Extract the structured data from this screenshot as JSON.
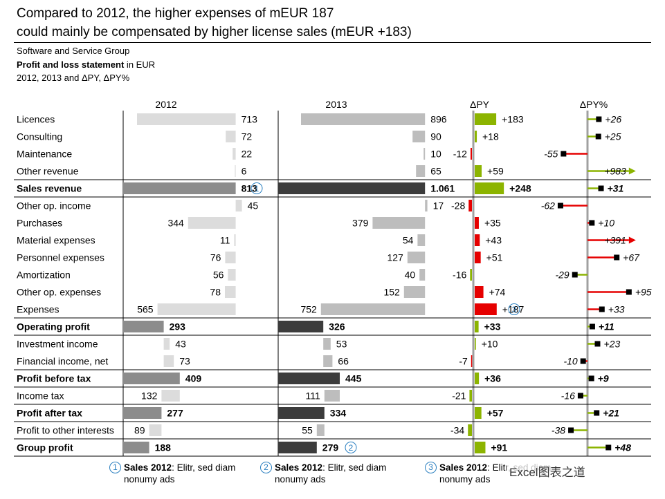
{
  "header": {
    "title_line1": "Compared to 2012, the higher expenses of mEUR 187",
    "title_line2": "could mainly be compensated by higher license sales (mEUR +183)",
    "company": "Software and Service Group",
    "statement_bold": "Profit and loss statement",
    "statement_rest": " in EUR",
    "periods": "2012, 2013 and ΔPY, ΔPY%"
  },
  "chart_data": {
    "type": "bar",
    "column_headers": [
      "2012",
      "2013",
      "ΔPY",
      "ΔPY%"
    ],
    "rows": [
      {
        "label": "Licences",
        "kind": "item",
        "v2012": 713,
        "l2012": "713",
        "v2013": 896,
        "l2013": "896",
        "dpy": 183,
        "ldpy": "+183",
        "dpct": 26,
        "ldpct": "+26",
        "bold": false
      },
      {
        "label": "Consulting",
        "kind": "item",
        "v2012": 72,
        "l2012": "72",
        "v2013": 90,
        "l2013": "90",
        "dpy": 18,
        "ldpy": "+18",
        "dpct": 25,
        "ldpct": "+25",
        "bold": false
      },
      {
        "label": "Maintenance",
        "kind": "item",
        "v2012": 22,
        "l2012": "22",
        "v2013": 10,
        "l2013": "10",
        "dpy": -12,
        "ldpy": "-12",
        "dpct": -55,
        "ldpct": "-55",
        "bold": false
      },
      {
        "label": "Other revenue",
        "kind": "item",
        "v2012": 6,
        "l2012": "6",
        "v2013": 65,
        "l2013": "65",
        "dpy": 59,
        "ldpy": "+59",
        "dpct": 983,
        "ldpct": "+983",
        "bold": false
      },
      {
        "label": "Sales revenue",
        "kind": "total",
        "v2012": 813,
        "l2012": "813",
        "v2013": 1061,
        "l2013": "1.061",
        "dpy": 248,
        "ldpy": "+248",
        "dpct": 31,
        "ldpct": "+31",
        "bold": true,
        "marker2012": "1"
      },
      {
        "label": "Other op. income",
        "kind": "item",
        "v2012": 45,
        "l2012": "45",
        "v2013": 17,
        "l2013": "17",
        "dpy": -28,
        "ldpy": "-28",
        "dpct": -62,
        "ldpct": "-62",
        "bold": false
      },
      {
        "label": "Purchases",
        "kind": "expense",
        "v2012": 344,
        "l2012": "344",
        "v2013": 379,
        "l2013": "379",
        "dpy": 35,
        "ldpy": "+35",
        "dpct": 10,
        "ldpct": "+10",
        "bold": false
      },
      {
        "label": "Material expenses",
        "kind": "expense",
        "v2012": 11,
        "l2012": "11",
        "v2013": 54,
        "l2013": "54",
        "dpy": 43,
        "ldpy": "+43",
        "dpct": 391,
        "ldpct": "+391",
        "bold": false
      },
      {
        "label": "Personnel expenses",
        "kind": "expense",
        "v2012": 76,
        "l2012": "76",
        "v2013": 127,
        "l2013": "127",
        "dpy": 51,
        "ldpy": "+51",
        "dpct": 67,
        "ldpct": "+67",
        "bold": false
      },
      {
        "label": "Amortization",
        "kind": "expense",
        "v2012": 56,
        "l2012": "56",
        "v2013": 40,
        "l2013": "40",
        "dpy": -16,
        "ldpy": "-16",
        "dpct": -29,
        "ldpct": "-29",
        "bold": false
      },
      {
        "label": "Other op. expenses",
        "kind": "expense",
        "v2012": 78,
        "l2012": "78",
        "v2013": 152,
        "l2013": "152",
        "dpy": 74,
        "ldpy": "+74",
        "dpct": 95,
        "ldpct": "+95",
        "bold": false
      },
      {
        "label": "Expenses",
        "kind": "expense",
        "v2012": 565,
        "l2012": "565",
        "v2013": 752,
        "l2013": "752",
        "dpy": 187,
        "ldpy": "+187",
        "dpct": 33,
        "ldpct": "+33",
        "bold": false,
        "markerDpy": "3"
      },
      {
        "label": "Operating profit",
        "kind": "total",
        "v2012": 293,
        "l2012": "293",
        "v2013": 326,
        "l2013": "326",
        "dpy": 33,
        "ldpy": "+33",
        "dpct": 11,
        "ldpct": "+11",
        "bold": true
      },
      {
        "label": "Investment income",
        "kind": "item",
        "v2012": 43,
        "l2012": "43",
        "v2013": 53,
        "l2013": "53",
        "dpy": 10,
        "ldpy": "+10",
        "dpct": 23,
        "ldpct": "+23",
        "bold": false
      },
      {
        "label": "Financial income, net",
        "kind": "item",
        "v2012": 73,
        "l2012": "73",
        "v2013": 66,
        "l2013": "66",
        "dpy": -7,
        "ldpy": "-7",
        "dpct": -10,
        "ldpct": "-10",
        "bold": false
      },
      {
        "label": "Profit before tax",
        "kind": "total",
        "v2012": 409,
        "l2012": "409",
        "v2013": 445,
        "l2013": "445",
        "dpy": 36,
        "ldpy": "+36",
        "dpct": 9,
        "ldpct": "+9",
        "bold": true
      },
      {
        "label": "Income tax",
        "kind": "expense",
        "v2012": 132,
        "l2012": "132",
        "v2013": 111,
        "l2013": "111",
        "dpy": -21,
        "ldpy": "-21",
        "dpct": -16,
        "ldpct": "-16",
        "bold": false
      },
      {
        "label": "Profit after tax",
        "kind": "total",
        "v2012": 277,
        "l2012": "277",
        "v2013": 334,
        "l2013": "334",
        "dpy": 57,
        "ldpy": "+57",
        "dpct": 21,
        "ldpct": "+21",
        "bold": true
      },
      {
        "label": "Profit to other interests",
        "kind": "expense",
        "v2012": 89,
        "l2012": "89",
        "v2013": 55,
        "l2013": "55",
        "dpy": -34,
        "ldpy": "-34",
        "dpct": -38,
        "ldpct": "-38",
        "bold": false
      },
      {
        "label": "Group profit",
        "kind": "total",
        "v2012": 188,
        "l2012": "188",
        "v2013": 279,
        "l2013": "279",
        "dpy": 91,
        "ldpy": "+91",
        "dpct": 48,
        "ldpct": "+48",
        "bold": true,
        "marker2013": "2"
      }
    ]
  },
  "colors": {
    "bar_2012": "#dcdcdc",
    "total_2012": "#8c8c8c",
    "bar_2013": "#bdbdbd",
    "total_2013": "#3c3c3c",
    "positive": "#8cb400",
    "negative": "#e60000",
    "axis": "#a0a0a0",
    "marker_circle": "#2a7fc0"
  },
  "notes": [
    {
      "num": "1",
      "bold": "Sales 2012",
      "text": ": Elitr, sed diam",
      "line2": "nonumy ads"
    },
    {
      "num": "2",
      "bold": "Sales 2012",
      "text": ": Elitr, sed diam",
      "line2": "nonumy ads"
    },
    {
      "num": "3",
      "bold": "Sales 2012",
      "text": ": Elitr, sed diam",
      "line2": "nonumy ads"
    }
  ],
  "watermark": "Excel图表之道"
}
